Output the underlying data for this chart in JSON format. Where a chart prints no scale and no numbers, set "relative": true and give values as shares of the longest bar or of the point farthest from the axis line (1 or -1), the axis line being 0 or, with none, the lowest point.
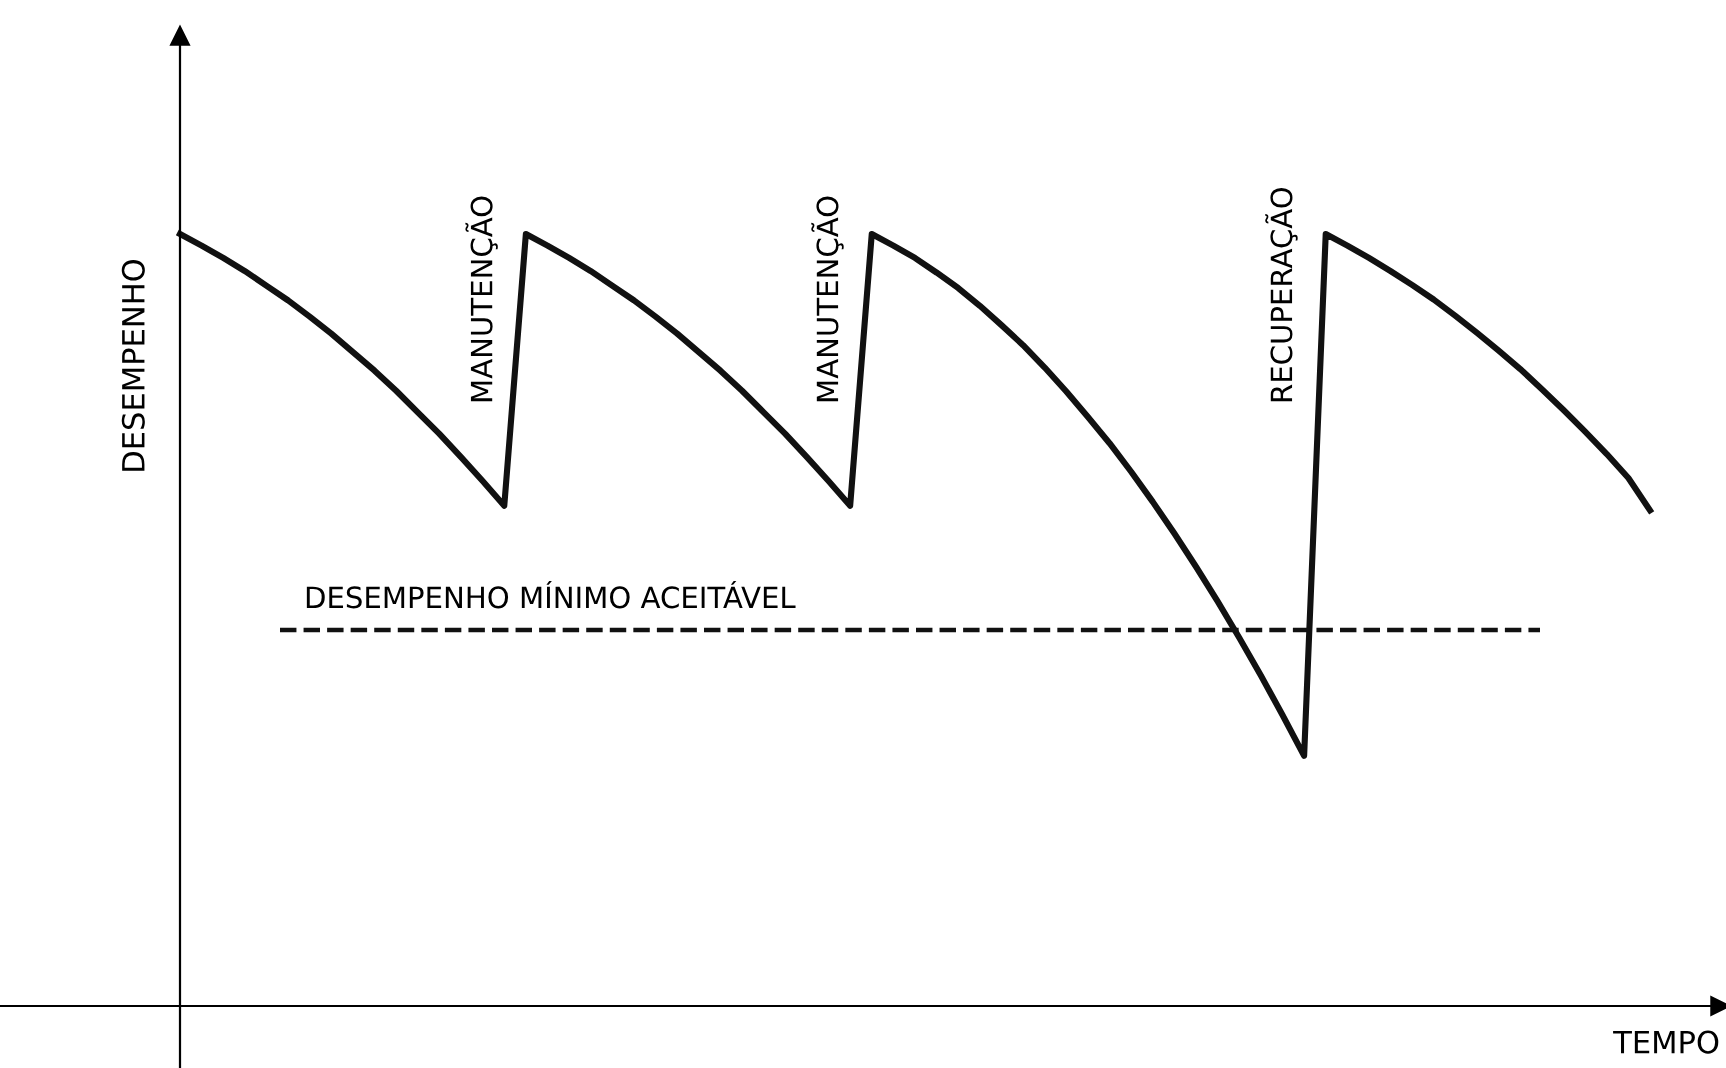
{
  "chart_data": {
    "type": "line",
    "relative": true,
    "xlabel": "TEMPO",
    "ylabel": "DESEMPENHO",
    "color": "#111111",
    "categories": [
      null,
      null,
      null,
      null,
      null,
      null,
      null,
      null,
      null,
      null,
      null,
      null,
      null,
      null,
      null,
      null,
      null,
      null,
      null,
      null,
      null,
      null,
      null,
      null,
      null,
      null,
      null,
      null,
      null,
      null,
      null,
      null,
      null,
      null,
      null,
      null,
      null,
      null,
      null,
      null,
      null,
      null,
      null,
      null,
      null,
      null,
      null,
      null,
      null,
      null,
      null,
      null,
      null,
      null,
      null,
      null,
      null,
      null,
      null,
      null,
      null,
      null,
      null,
      null,
      null,
      null,
      null,
      null,
      null
    ],
    "values": [
      1.0,
      0.985,
      0.969,
      0.952,
      0.933,
      0.914,
      0.893,
      0.871,
      0.847,
      0.823,
      0.797,
      0.769,
      0.741,
      0.711,
      0.68,
      0.648,
      1.0,
      0.985,
      0.969,
      0.952,
      0.933,
      0.914,
      0.893,
      0.871,
      0.847,
      0.823,
      0.797,
      0.769,
      0.741,
      0.711,
      0.68,
      0.648,
      1.0,
      0.985,
      0.969,
      0.95,
      0.93,
      0.907,
      0.882,
      0.856,
      0.827,
      0.796,
      0.763,
      0.729,
      0.692,
      0.653,
      0.612,
      0.569,
      0.524,
      0.477,
      0.428,
      0.377,
      0.324,
      1.0,
      0.985,
      0.969,
      0.952,
      0.934,
      0.915,
      0.894,
      0.872,
      0.849,
      0.825,
      0.799,
      0.772,
      0.744,
      0.715,
      0.684,
      0.642
    ],
    "ref_lines": [
      {
        "axis": "y",
        "value": 0.487,
        "label": "DESEMPENHO MÍNIMO ACEITÁVEL",
        "line_style": "dashed",
        "color": "#111111"
      }
    ],
    "annotations": [
      "MANUTENÇÃO",
      "MANUTENÇÃO",
      "RECUPERAÇÃO"
    ],
    "legend": false,
    "marker": "none",
    "line_style": "solid"
  }
}
